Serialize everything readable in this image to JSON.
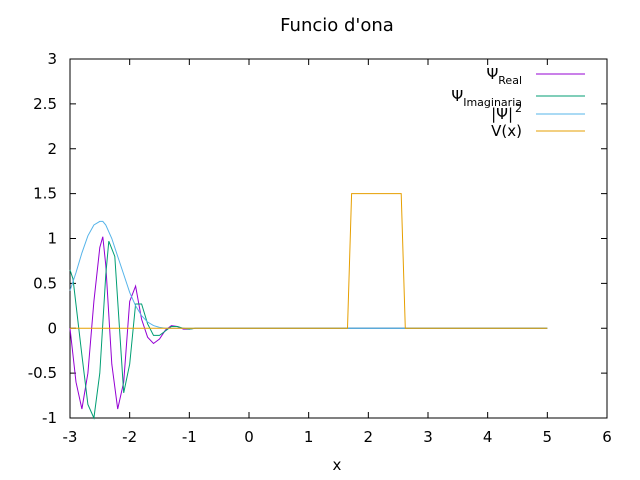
{
  "chart_data": {
    "type": "line",
    "title": "Funcio d'ona",
    "xlabel": "x",
    "ylabel": "",
    "xlim": [
      -3,
      6
    ],
    "ylim": [
      -1,
      3
    ],
    "xticks": [
      "-3",
      "-2",
      "-1",
      "0",
      "1",
      "2",
      "3",
      "4",
      "5",
      "6"
    ],
    "yticks": [
      "-1",
      "-0.5",
      "0",
      "0.5",
      "1",
      "1.5",
      "2",
      "2.5",
      "3"
    ],
    "grid": false,
    "legend_position": "top-right",
    "series": [
      {
        "name": "Ψ",
        "name_sub": "Real",
        "color": "#9400d3",
        "x": [
          -3.0,
          -2.9,
          -2.8,
          -2.7,
          -2.6,
          -2.5,
          -2.45,
          -2.4,
          -2.3,
          -2.2,
          -2.1,
          -2.0,
          -1.9,
          -1.8,
          -1.7,
          -1.6,
          -1.5,
          -1.4,
          -1.3,
          -1.2,
          -1.1,
          -1.0,
          -0.9,
          5.0
        ],
        "y": [
          0.0,
          -0.6,
          -0.9,
          -0.5,
          0.3,
          0.9,
          1.02,
          0.7,
          -0.4,
          -0.9,
          -0.6,
          0.3,
          0.47,
          0.1,
          -0.1,
          -0.17,
          -0.12,
          -0.02,
          0.03,
          0.02,
          -0.01,
          -0.01,
          0.0,
          0.0
        ]
      },
      {
        "name": "Ψ",
        "name_sub": "Imaginaria",
        "color": "#009e73",
        "x": [
          -3.0,
          -2.95,
          -2.8,
          -2.7,
          -2.6,
          -2.5,
          -2.4,
          -2.35,
          -2.25,
          -2.1,
          -2.0,
          -1.9,
          -1.8,
          -1.7,
          -1.6,
          -1.5,
          -1.4,
          -1.3,
          -1.2,
          -1.1,
          -1.0,
          -0.9,
          5.0
        ],
        "y": [
          0.65,
          0.55,
          -0.3,
          -0.85,
          -1.0,
          -0.5,
          0.6,
          0.97,
          0.8,
          -0.72,
          -0.4,
          0.27,
          0.27,
          0.05,
          -0.08,
          -0.08,
          -0.03,
          0.02,
          0.02,
          0.0,
          -0.01,
          0.0,
          0.0
        ]
      },
      {
        "name": "|Ψ|",
        "name_sup": "2",
        "color": "#56b4e9",
        "x": [
          -3.0,
          -2.9,
          -2.8,
          -2.7,
          -2.6,
          -2.5,
          -2.45,
          -2.4,
          -2.3,
          -2.2,
          -2.1,
          -2.0,
          -1.9,
          -1.8,
          -1.7,
          -1.6,
          -1.5,
          -1.4,
          -1.3,
          -1.2,
          -1.1,
          -1.0,
          -0.9,
          5.0
        ],
        "y": [
          0.42,
          0.62,
          0.84,
          1.03,
          1.15,
          1.19,
          1.19,
          1.15,
          1.0,
          0.8,
          0.6,
          0.4,
          0.25,
          0.14,
          0.07,
          0.03,
          0.01,
          0.0,
          0.0,
          0.0,
          0.0,
          0.0,
          0.0,
          0.0
        ]
      },
      {
        "name": "V(x)",
        "color": "#e69f00",
        "x": [
          -3.0,
          1.65,
          1.72,
          2.55,
          2.62,
          5.0
        ],
        "y": [
          0.0,
          0.0,
          1.5,
          1.5,
          0.0,
          0.0
        ]
      }
    ]
  }
}
